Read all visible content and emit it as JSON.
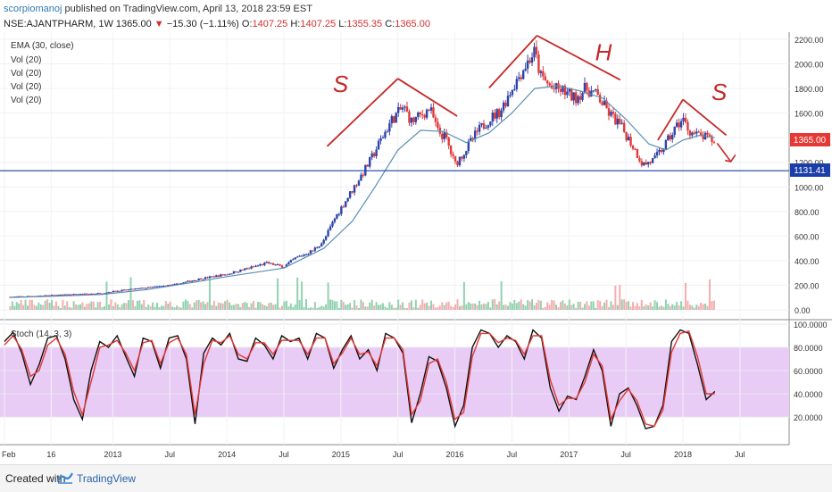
{
  "header": {
    "author": "scorpiomanoj",
    "published_text": "published on TradingView.com, April 13, 2018 23:59 EST",
    "symbol_interval": "NSE:AJANTPHARM, 1W",
    "last_price": "1365.00",
    "change": "−15.30 (−1.11%)",
    "open_label": "O:",
    "open_value": "1407.25",
    "high_label": "H:",
    "high_value": "1407.25",
    "low_label": "L:",
    "low_value": "1355.35",
    "close_label": "C:",
    "close_value": "1365.00"
  },
  "legend": [
    "EMA (30, close)",
    "Vol (20)",
    "Vol (20)",
    "Vol (20)",
    "Vol (20)"
  ],
  "price_badge": "1365.00",
  "support_badge": "1131.41",
  "stoch_label": "Stoch (14, 3, 3)",
  "annotations": [
    "S",
    "H",
    "S"
  ],
  "footer": {
    "created_with": "Created with",
    "brand": "TradingView"
  },
  "colors": {
    "up": "#2e44a8",
    "down": "#e03a3a",
    "ema": "#5b8fb4",
    "stoch_k": "#111111",
    "stoch_d": "#e53935",
    "band": "#e8ccf5",
    "annotation": "#c62828",
    "support": "#1a3ea8"
  },
  "chart_data": [
    {
      "type": "candlestick",
      "interval": "1W",
      "ylim": [
        0,
        2200
      ],
      "y_ticks": [
        "2200.00",
        "2000.00",
        "1800.00",
        "1600.00",
        "1400.00",
        "1200.00",
        "1000.00",
        "800.00",
        "600.00",
        "400.00",
        "200.00",
        "0.00"
      ],
      "x_ticks": [
        "Feb",
        "16",
        "2013",
        "Jul",
        "2014",
        "Jul",
        "2015",
        "Jul",
        "2016",
        "Jul",
        "2017",
        "Jul",
        "2018",
        "Jul"
      ],
      "close_path": [
        [
          2012.1,
          105
        ],
        [
          2012.5,
          120
        ],
        [
          2012.9,
          135
        ],
        [
          2013.0,
          150
        ],
        [
          2013.3,
          180
        ],
        [
          2013.55,
          205
        ],
        [
          2013.75,
          250
        ],
        [
          2014.0,
          290
        ],
        [
          2014.35,
          380
        ],
        [
          2014.5,
          350
        ],
        [
          2014.6,
          420
        ],
        [
          2014.75,
          480
        ],
        [
          2014.85,
          560
        ],
        [
          2014.95,
          750
        ],
        [
          2015.05,
          900
        ],
        [
          2015.15,
          1050
        ],
        [
          2015.25,
          1200
        ],
        [
          2015.35,
          1380
        ],
        [
          2015.45,
          1550
        ],
        [
          2015.55,
          1650
        ],
        [
          2015.62,
          1530
        ],
        [
          2015.7,
          1580
        ],
        [
          2015.78,
          1640
        ],
        [
          2015.85,
          1450
        ],
        [
          2015.92,
          1400
        ],
        [
          2016.0,
          1180
        ],
        [
          2016.1,
          1310
        ],
        [
          2016.2,
          1450
        ],
        [
          2016.3,
          1550
        ],
        [
          2016.4,
          1620
        ],
        [
          2016.5,
          1800
        ],
        [
          2016.6,
          1960
        ],
        [
          2016.7,
          2100
        ],
        [
          2016.75,
          1900
        ],
        [
          2016.85,
          1800
        ],
        [
          2016.95,
          1780
        ],
        [
          2017.05,
          1720
        ],
        [
          2017.15,
          1800
        ],
        [
          2017.25,
          1740
        ],
        [
          2017.35,
          1600
        ],
        [
          2017.45,
          1500
        ],
        [
          2017.55,
          1350
        ],
        [
          2017.65,
          1180
        ],
        [
          2017.75,
          1220
        ],
        [
          2017.85,
          1350
        ],
        [
          2017.95,
          1500
        ],
        [
          2018.0,
          1550
        ],
        [
          2018.05,
          1460
        ],
        [
          2018.12,
          1420
        ],
        [
          2018.2,
          1400
        ],
        [
          2018.28,
          1365
        ]
      ],
      "ema_30": [
        [
          2012.1,
          100
        ],
        [
          2012.5,
          112
        ],
        [
          2012.9,
          125
        ],
        [
          2013.3,
          165
        ],
        [
          2013.75,
          230
        ],
        [
          2014.0,
          270
        ],
        [
          2014.5,
          340
        ],
        [
          2014.85,
          500
        ],
        [
          2015.1,
          720
        ],
        [
          2015.3,
          1000
        ],
        [
          2015.5,
          1300
        ],
        [
          2015.7,
          1460
        ],
        [
          2015.9,
          1450
        ],
        [
          2016.1,
          1360
        ],
        [
          2016.3,
          1440
        ],
        [
          2016.5,
          1600
        ],
        [
          2016.7,
          1800
        ],
        [
          2016.9,
          1820
        ],
        [
          2017.1,
          1780
        ],
        [
          2017.3,
          1720
        ],
        [
          2017.5,
          1550
        ],
        [
          2017.7,
          1350
        ],
        [
          2017.85,
          1300
        ],
        [
          2018.0,
          1380
        ],
        [
          2018.15,
          1420
        ],
        [
          2018.28,
          1400
        ]
      ],
      "support_level": 1131.41,
      "last_close": 1365.0
    },
    {
      "type": "line",
      "title": "Stoch (14, 3, 3)",
      "ylim": [
        0,
        100
      ],
      "y_ticks": [
        "100.0000",
        "80.0000",
        "60.0000",
        "40.0000",
        "20.0000"
      ],
      "band": [
        20,
        80
      ],
      "series": [
        {
          "values": [
            85,
            93,
            75,
            48,
            65,
            88,
            90,
            70,
            35,
            18,
            60,
            85,
            80,
            90,
            72,
            55,
            88,
            85,
            62,
            88,
            90,
            70,
            14,
            75,
            88,
            82,
            92,
            70,
            68,
            88,
            82,
            70,
            90,
            85,
            88,
            70,
            92,
            88,
            62,
            78,
            90,
            70,
            78,
            60,
            92,
            88,
            75,
            15,
            40,
            72,
            68,
            45,
            12,
            30,
            80,
            95,
            92,
            80,
            90,
            85,
            70,
            95,
            88,
            45,
            25,
            38,
            35,
            55,
            78,
            60,
            12,
            40,
            45,
            30,
            10,
            12,
            30,
            85,
            95,
            92,
            65,
            35,
            42
          ]
        },
        {
          "values": [
            82,
            90,
            78,
            55,
            60,
            82,
            88,
            74,
            42,
            22,
            50,
            80,
            82,
            86,
            75,
            60,
            84,
            86,
            66,
            84,
            88,
            74,
            22,
            66,
            86,
            84,
            90,
            74,
            70,
            84,
            84,
            74,
            86,
            86,
            86,
            74,
            88,
            88,
            66,
            75,
            88,
            74,
            76,
            64,
            88,
            88,
            78,
            22,
            34,
            66,
            70,
            50,
            18,
            24,
            72,
            92,
            92,
            84,
            88,
            86,
            74,
            90,
            90,
            52,
            30,
            36,
            36,
            50,
            74,
            64,
            18,
            34,
            44,
            34,
            14,
            12,
            26,
            76,
            92,
            94,
            72,
            40,
            40
          ]
        }
      ]
    }
  ]
}
